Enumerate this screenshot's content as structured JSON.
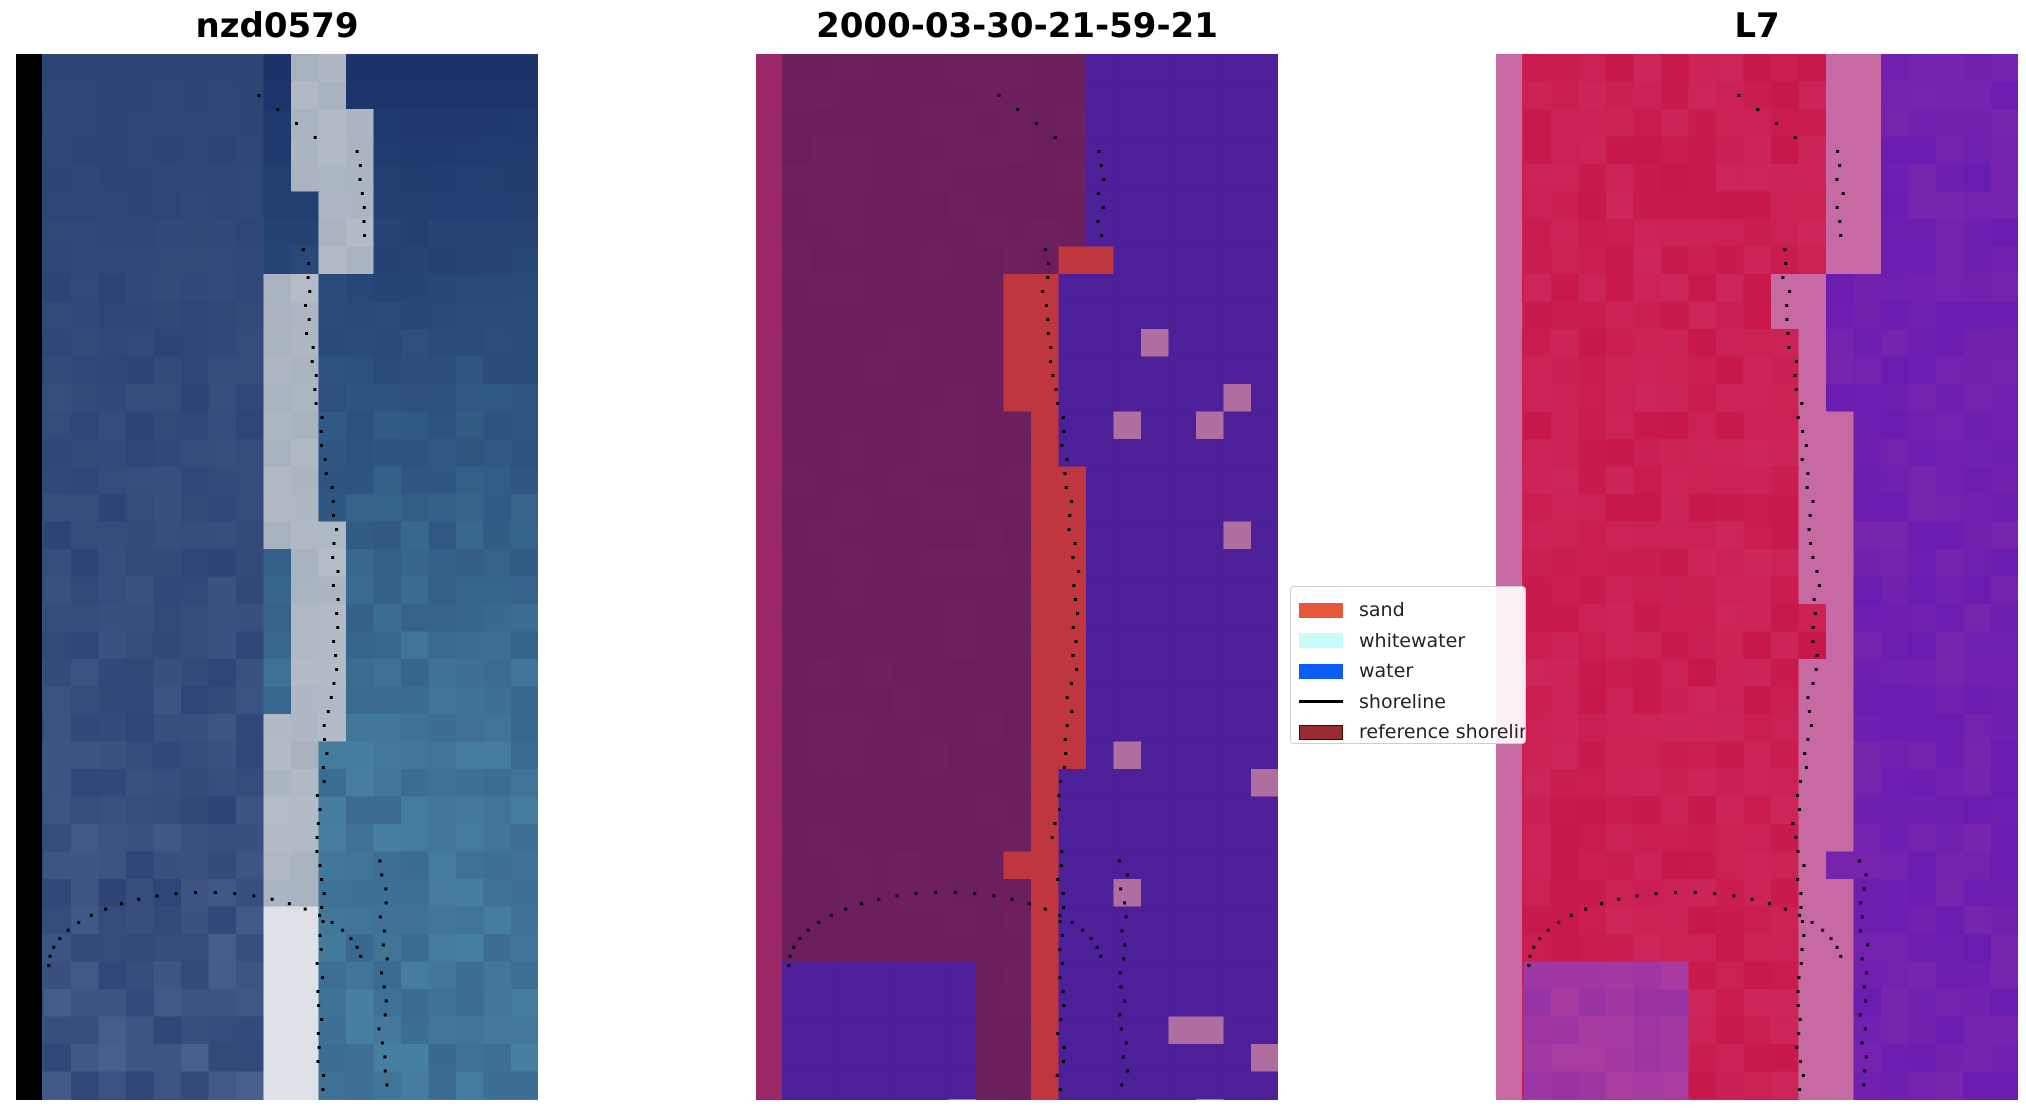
{
  "panels": [
    {
      "id": "rgb",
      "title": "nzd0579"
    },
    {
      "id": "classified",
      "title": "2000-03-30-21-59-21"
    },
    {
      "id": "index",
      "title": "L7"
    }
  ],
  "legend": {
    "items": [
      {
        "label": "sand",
        "color": "#e8593a",
        "kind": "patch"
      },
      {
        "label": "whitewater",
        "color": "#c8fdfb",
        "kind": "patch"
      },
      {
        "label": "water",
        "color": "#0a5cf5",
        "kind": "patch"
      },
      {
        "label": "shoreline",
        "color": "#000000",
        "kind": "line"
      },
      {
        "label": "reference shoreline",
        "color": "#9b2b32",
        "kind": "patch"
      }
    ]
  },
  "colors": {
    "land_tint": "#6b1e5c",
    "water_tint": "#4d1f98",
    "sand_tint": "#c0363f",
    "white_tint": "#b06ea0",
    "index_high": "#c8174a",
    "index_low": "#6a1bb0",
    "index_border": "#c76aa4"
  }
}
